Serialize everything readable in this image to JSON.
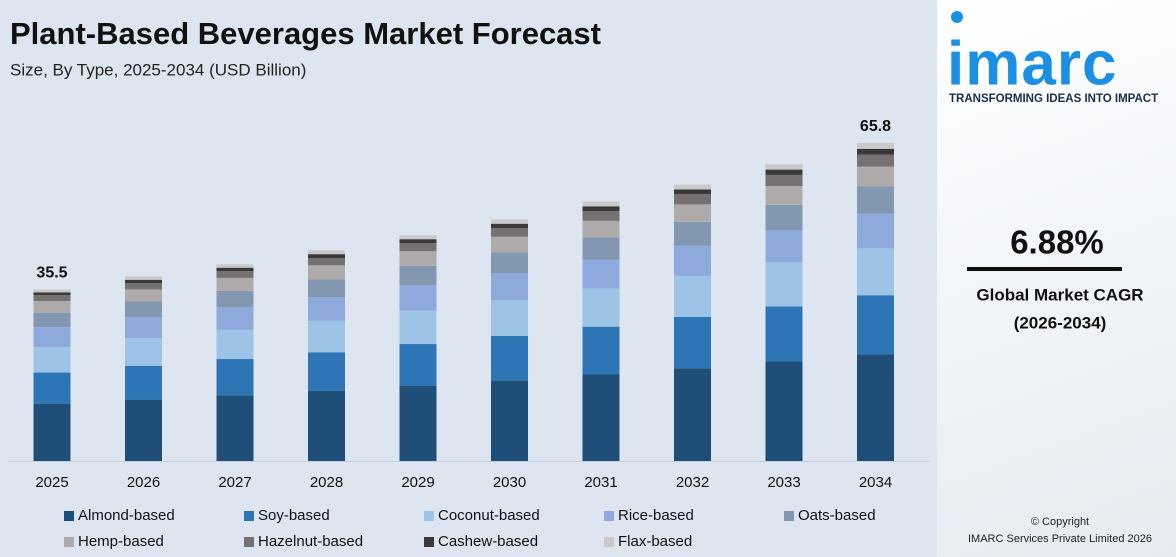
{
  "chart_data": {
    "type": "stacked_bar",
    "title": "Plant-Based Beverages Market Forecast",
    "subtitle": "Size, By Type, 2025-2034 (USD Billion)",
    "categories": [
      "2025",
      "2026",
      "2027",
      "2028",
      "2029",
      "2030",
      "2031",
      "2032",
      "2033",
      "2034"
    ],
    "series": [
      {
        "name": "Almond-based",
        "color": "#1f4e79",
        "values": [
          11.8,
          12.7,
          13.6,
          14.5,
          15.6,
          16.7,
          17.9,
          19.2,
          20.6,
          22.1
        ]
      },
      {
        "name": "Soy-based",
        "color": "#2e75b6",
        "values": [
          6.5,
          7.0,
          7.5,
          8.0,
          8.6,
          9.2,
          9.9,
          10.6,
          11.4,
          12.2
        ]
      },
      {
        "name": "Coconut-based",
        "color": "#9dc3e6",
        "values": [
          5.3,
          5.7,
          6.1,
          6.5,
          6.9,
          7.4,
          7.9,
          8.5,
          9.1,
          9.7
        ]
      },
      {
        "name": "Rice-based",
        "color": "#8eaadc",
        "values": [
          4.1,
          4.4,
          4.6,
          4.9,
          5.3,
          5.6,
          6.0,
          6.3,
          6.7,
          7.2
        ]
      },
      {
        "name": "Oats-based",
        "color": "#8497b0",
        "values": [
          3.0,
          3.2,
          3.4,
          3.7,
          4.0,
          4.3,
          4.6,
          4.9,
          5.2,
          5.6
        ]
      },
      {
        "name": "Hemp-based",
        "color": "#aeaaaa",
        "values": [
          2.4,
          2.5,
          2.7,
          2.9,
          3.0,
          3.2,
          3.4,
          3.6,
          3.9,
          4.1
        ]
      },
      {
        "name": "Hazelnut-based",
        "color": "#767171",
        "values": [
          1.2,
          1.3,
          1.4,
          1.5,
          1.7,
          1.8,
          2.0,
          2.1,
          2.3,
          2.5
        ]
      },
      {
        "name": "Cashew-based",
        "color": "#3a3838",
        "values": [
          0.6,
          0.7,
          0.7,
          0.8,
          0.8,
          0.9,
          1.0,
          1.0,
          1.1,
          1.2
        ]
      },
      {
        "name": "Flax-based",
        "color": "#c9c9c9",
        "values": [
          0.6,
          0.7,
          0.7,
          0.8,
          0.8,
          0.9,
          1.0,
          1.0,
          1.1,
          1.2
        ]
      }
    ],
    "totals": [
      35.5,
      null,
      null,
      null,
      null,
      null,
      null,
      null,
      null,
      65.8
    ]
  },
  "sidebar": {
    "logo": "imarc",
    "tagline": "TRANSFORMING IDEAS INTO IMPACT",
    "cagr": "6.88%",
    "cagr_label": "Global Market CAGR",
    "cagr_period": "(2026-2034)",
    "copyright": "© Copyright",
    "company": "IMARC Services Private Limited 2026"
  }
}
